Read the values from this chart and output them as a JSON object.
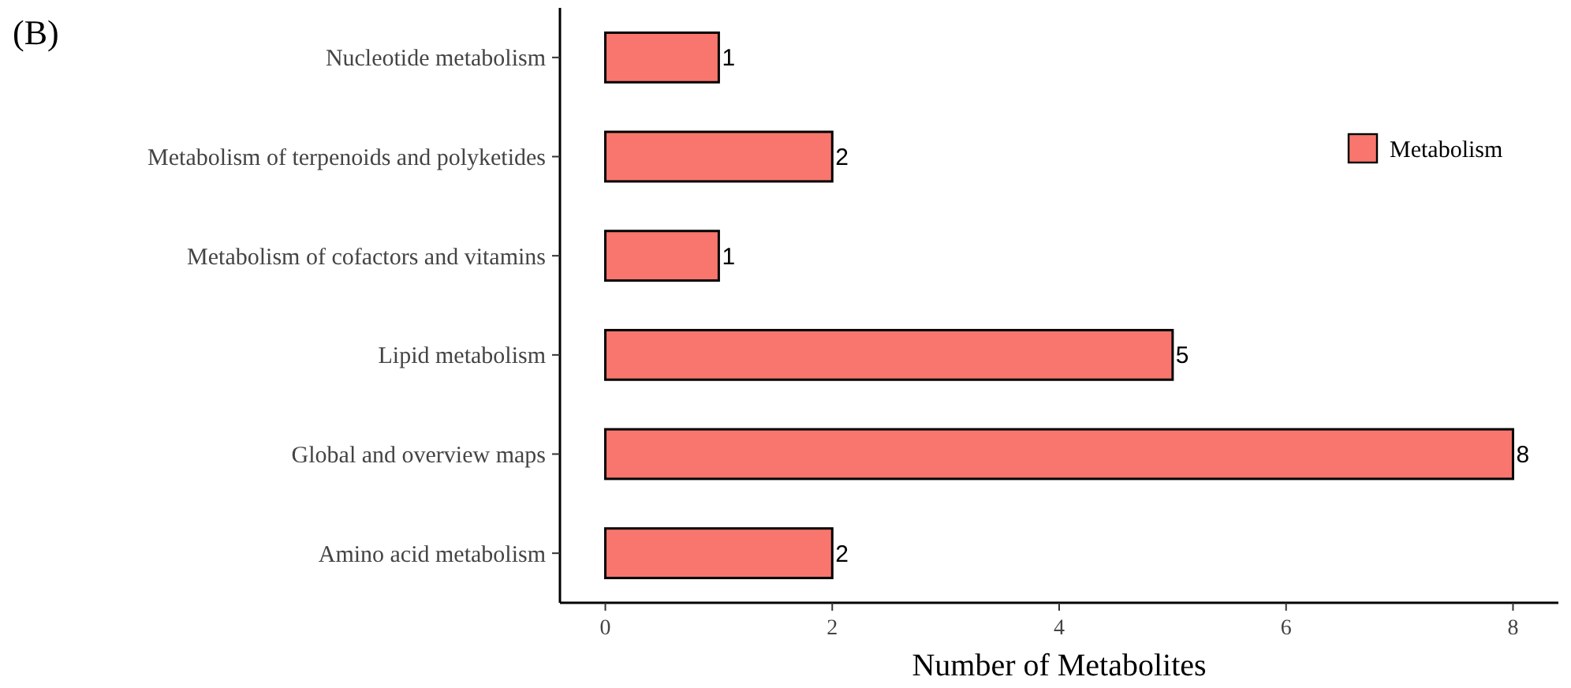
{
  "chart_data": {
    "type": "bar",
    "orientation": "horizontal",
    "title": "(B)",
    "xlabel": "Number of Metabolites",
    "categories": [
      "Nucleotide metabolism",
      "Metabolism of terpenoids and polyketides",
      "Metabolism of cofactors and vitamins",
      "Lipid metabolism",
      "Global and overview maps",
      "Amino acid metabolism"
    ],
    "series": [
      {
        "name": "Metabolism",
        "color": "#f8766d",
        "values": [
          1,
          2,
          1,
          5,
          8,
          2
        ]
      }
    ],
    "xlim": [
      -0.4,
      8.4
    ],
    "xticks": [
      0,
      2,
      4,
      6,
      8
    ],
    "data_labels": true,
    "grid": false,
    "legend": "top right"
  }
}
